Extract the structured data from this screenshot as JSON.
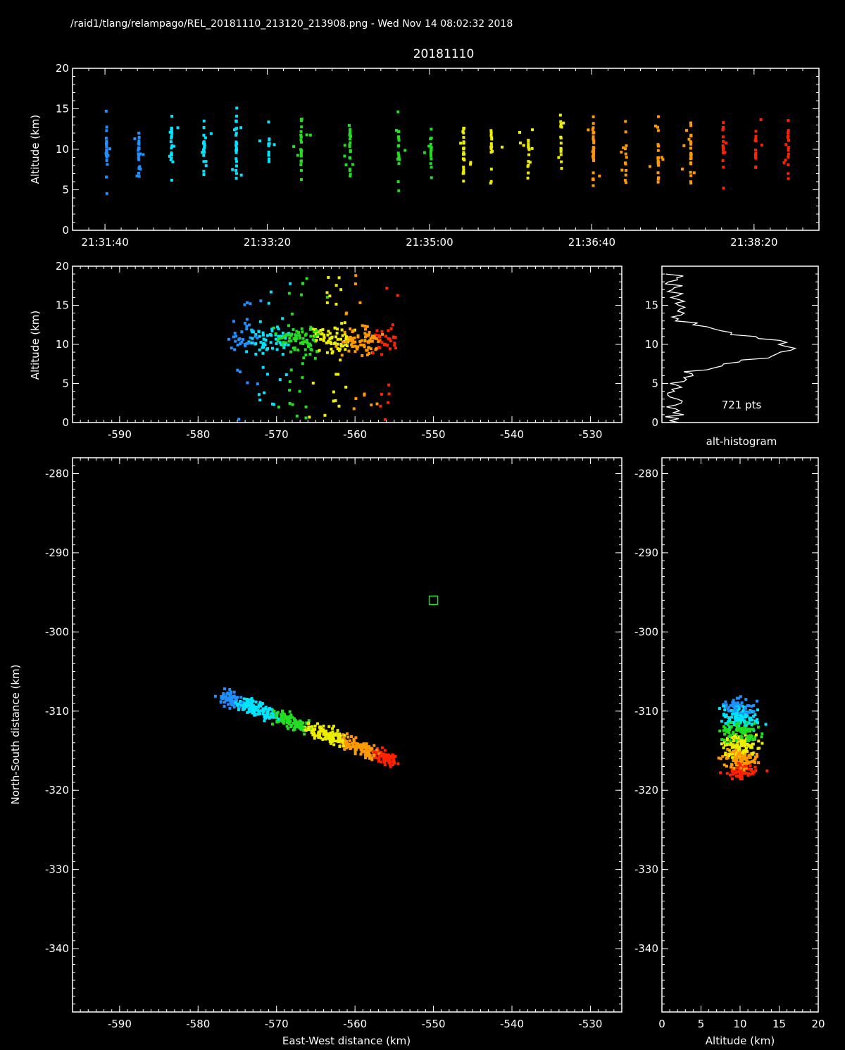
{
  "header": {
    "file_line": "/raid1/tlang/relampago/REL_20181110_213120_213908.png - Wed Nov 14 08:02:32 2018",
    "date_title": "20181110"
  },
  "colors": {
    "background": "#000000",
    "axes": "#ffffff",
    "early": "#1e90ff",
    "cyan": "#00e5ff",
    "green": "#22dd22",
    "yellow": "#eeee00",
    "orange": "#ff9900",
    "late": "#ff2200",
    "station_marker": "#22dd22"
  },
  "chart_data": [
    {
      "id": "time-height",
      "type": "scatter",
      "ylabel": "Altitude (km)",
      "ylim": [
        0,
        20
      ],
      "yticks": [
        "0",
        "5",
        "10",
        "15",
        "20"
      ],
      "xlim_seconds": [
        80,
        540
      ],
      "xtick_labels": [
        "21:31:40",
        "21:33:20",
        "21:35:00",
        "21:36:40",
        "21:38:20"
      ],
      "xtick_seconds": [
        100,
        200,
        300,
        400,
        500
      ],
      "x_origin": "21:30:00",
      "strokes_seconds": [
        101,
        121,
        141,
        161,
        181,
        201,
        221,
        251,
        281,
        301,
        321,
        338,
        361,
        381,
        401,
        421,
        441,
        461,
        481,
        501,
        521
      ]
    },
    {
      "id": "ew-altitude",
      "type": "scatter",
      "ylabel": "Altitude (km)",
      "xlim": [
        -596,
        -526
      ],
      "ylim": [
        0,
        20
      ],
      "xtick_labels": [
        "-590",
        "-580",
        "-570",
        "-560",
        "-550",
        "-540",
        "-530"
      ],
      "yticks": [
        "0",
        "5",
        "10",
        "15",
        "20"
      ]
    },
    {
      "id": "alt-histogram",
      "type": "line",
      "title": "alt-histogram",
      "annotation": "721 pts",
      "ylim": [
        0,
        20
      ],
      "yticks": [
        "0",
        "5",
        "10",
        "15"
      ],
      "peak_altitude_km": 9.5
    },
    {
      "id": "plan-view",
      "type": "scatter",
      "xlabel": "East-West distance (km)",
      "ylabel": "North-South distance (km)",
      "xlim": [
        -596,
        -526
      ],
      "ylim": [
        -348,
        -278
      ],
      "xtick_labels": [
        "-590",
        "-580",
        "-570",
        "-560",
        "-550",
        "-540",
        "-530"
      ],
      "ytick_labels": [
        "-280",
        "-290",
        "-300",
        "-310",
        "-320",
        "-330",
        "-340"
      ],
      "station": {
        "x": -550,
        "y": -296
      },
      "cluster": {
        "x_range": [
          -577,
          -555
        ],
        "y_range": [
          -319,
          -308
        ]
      }
    },
    {
      "id": "ns-altitude",
      "type": "scatter",
      "xlabel": "Altitude (km)",
      "xlim": [
        0,
        20
      ],
      "ylim": [
        -348,
        -278
      ],
      "xtick_labels": [
        "0",
        "5",
        "10",
        "15",
        "20"
      ],
      "ytick_labels": [
        "-280",
        "-290",
        "-300",
        "-310",
        "-320",
        "-330",
        "-340"
      ]
    }
  ]
}
